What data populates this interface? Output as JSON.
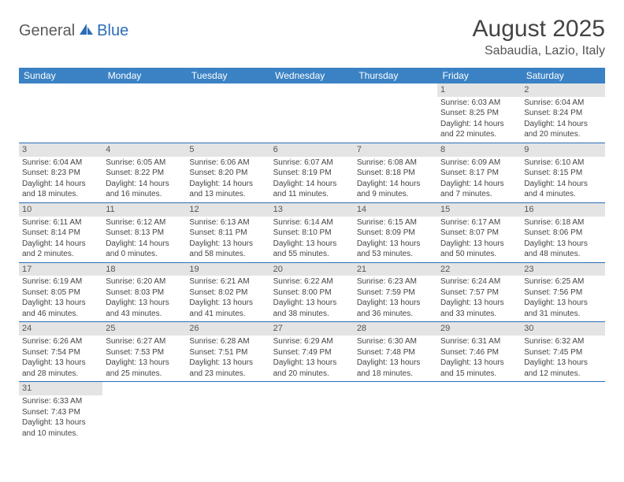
{
  "logo": {
    "general": "General",
    "blue": "Blue"
  },
  "title": "August 2025",
  "location": "Sabaudia, Lazio, Italy",
  "colors": {
    "header_bg": "#3b82c4",
    "header_text": "#ffffff",
    "border": "#2a6db8",
    "daynum_bg": "#e4e4e4",
    "text": "#444444"
  },
  "days_of_week": [
    "Sunday",
    "Monday",
    "Tuesday",
    "Wednesday",
    "Thursday",
    "Friday",
    "Saturday"
  ],
  "weeks": [
    [
      {},
      {},
      {},
      {},
      {},
      {
        "n": "1",
        "sr": "Sunrise: 6:03 AM",
        "ss": "Sunset: 8:25 PM",
        "dl1": "Daylight: 14 hours",
        "dl2": "and 22 minutes."
      },
      {
        "n": "2",
        "sr": "Sunrise: 6:04 AM",
        "ss": "Sunset: 8:24 PM",
        "dl1": "Daylight: 14 hours",
        "dl2": "and 20 minutes."
      }
    ],
    [
      {
        "n": "3",
        "sr": "Sunrise: 6:04 AM",
        "ss": "Sunset: 8:23 PM",
        "dl1": "Daylight: 14 hours",
        "dl2": "and 18 minutes."
      },
      {
        "n": "4",
        "sr": "Sunrise: 6:05 AM",
        "ss": "Sunset: 8:22 PM",
        "dl1": "Daylight: 14 hours",
        "dl2": "and 16 minutes."
      },
      {
        "n": "5",
        "sr": "Sunrise: 6:06 AM",
        "ss": "Sunset: 8:20 PM",
        "dl1": "Daylight: 14 hours",
        "dl2": "and 13 minutes."
      },
      {
        "n": "6",
        "sr": "Sunrise: 6:07 AM",
        "ss": "Sunset: 8:19 PM",
        "dl1": "Daylight: 14 hours",
        "dl2": "and 11 minutes."
      },
      {
        "n": "7",
        "sr": "Sunrise: 6:08 AM",
        "ss": "Sunset: 8:18 PM",
        "dl1": "Daylight: 14 hours",
        "dl2": "and 9 minutes."
      },
      {
        "n": "8",
        "sr": "Sunrise: 6:09 AM",
        "ss": "Sunset: 8:17 PM",
        "dl1": "Daylight: 14 hours",
        "dl2": "and 7 minutes."
      },
      {
        "n": "9",
        "sr": "Sunrise: 6:10 AM",
        "ss": "Sunset: 8:15 PM",
        "dl1": "Daylight: 14 hours",
        "dl2": "and 4 minutes."
      }
    ],
    [
      {
        "n": "10",
        "sr": "Sunrise: 6:11 AM",
        "ss": "Sunset: 8:14 PM",
        "dl1": "Daylight: 14 hours",
        "dl2": "and 2 minutes."
      },
      {
        "n": "11",
        "sr": "Sunrise: 6:12 AM",
        "ss": "Sunset: 8:13 PM",
        "dl1": "Daylight: 14 hours",
        "dl2": "and 0 minutes."
      },
      {
        "n": "12",
        "sr": "Sunrise: 6:13 AM",
        "ss": "Sunset: 8:11 PM",
        "dl1": "Daylight: 13 hours",
        "dl2": "and 58 minutes."
      },
      {
        "n": "13",
        "sr": "Sunrise: 6:14 AM",
        "ss": "Sunset: 8:10 PM",
        "dl1": "Daylight: 13 hours",
        "dl2": "and 55 minutes."
      },
      {
        "n": "14",
        "sr": "Sunrise: 6:15 AM",
        "ss": "Sunset: 8:09 PM",
        "dl1": "Daylight: 13 hours",
        "dl2": "and 53 minutes."
      },
      {
        "n": "15",
        "sr": "Sunrise: 6:17 AM",
        "ss": "Sunset: 8:07 PM",
        "dl1": "Daylight: 13 hours",
        "dl2": "and 50 minutes."
      },
      {
        "n": "16",
        "sr": "Sunrise: 6:18 AM",
        "ss": "Sunset: 8:06 PM",
        "dl1": "Daylight: 13 hours",
        "dl2": "and 48 minutes."
      }
    ],
    [
      {
        "n": "17",
        "sr": "Sunrise: 6:19 AM",
        "ss": "Sunset: 8:05 PM",
        "dl1": "Daylight: 13 hours",
        "dl2": "and 46 minutes."
      },
      {
        "n": "18",
        "sr": "Sunrise: 6:20 AM",
        "ss": "Sunset: 8:03 PM",
        "dl1": "Daylight: 13 hours",
        "dl2": "and 43 minutes."
      },
      {
        "n": "19",
        "sr": "Sunrise: 6:21 AM",
        "ss": "Sunset: 8:02 PM",
        "dl1": "Daylight: 13 hours",
        "dl2": "and 41 minutes."
      },
      {
        "n": "20",
        "sr": "Sunrise: 6:22 AM",
        "ss": "Sunset: 8:00 PM",
        "dl1": "Daylight: 13 hours",
        "dl2": "and 38 minutes."
      },
      {
        "n": "21",
        "sr": "Sunrise: 6:23 AM",
        "ss": "Sunset: 7:59 PM",
        "dl1": "Daylight: 13 hours",
        "dl2": "and 36 minutes."
      },
      {
        "n": "22",
        "sr": "Sunrise: 6:24 AM",
        "ss": "Sunset: 7:57 PM",
        "dl1": "Daylight: 13 hours",
        "dl2": "and 33 minutes."
      },
      {
        "n": "23",
        "sr": "Sunrise: 6:25 AM",
        "ss": "Sunset: 7:56 PM",
        "dl1": "Daylight: 13 hours",
        "dl2": "and 31 minutes."
      }
    ],
    [
      {
        "n": "24",
        "sr": "Sunrise: 6:26 AM",
        "ss": "Sunset: 7:54 PM",
        "dl1": "Daylight: 13 hours",
        "dl2": "and 28 minutes."
      },
      {
        "n": "25",
        "sr": "Sunrise: 6:27 AM",
        "ss": "Sunset: 7:53 PM",
        "dl1": "Daylight: 13 hours",
        "dl2": "and 25 minutes."
      },
      {
        "n": "26",
        "sr": "Sunrise: 6:28 AM",
        "ss": "Sunset: 7:51 PM",
        "dl1": "Daylight: 13 hours",
        "dl2": "and 23 minutes."
      },
      {
        "n": "27",
        "sr": "Sunrise: 6:29 AM",
        "ss": "Sunset: 7:49 PM",
        "dl1": "Daylight: 13 hours",
        "dl2": "and 20 minutes."
      },
      {
        "n": "28",
        "sr": "Sunrise: 6:30 AM",
        "ss": "Sunset: 7:48 PM",
        "dl1": "Daylight: 13 hours",
        "dl2": "and 18 minutes."
      },
      {
        "n": "29",
        "sr": "Sunrise: 6:31 AM",
        "ss": "Sunset: 7:46 PM",
        "dl1": "Daylight: 13 hours",
        "dl2": "and 15 minutes."
      },
      {
        "n": "30",
        "sr": "Sunrise: 6:32 AM",
        "ss": "Sunset: 7:45 PM",
        "dl1": "Daylight: 13 hours",
        "dl2": "and 12 minutes."
      }
    ],
    [
      {
        "n": "31",
        "sr": "Sunrise: 6:33 AM",
        "ss": "Sunset: 7:43 PM",
        "dl1": "Daylight: 13 hours",
        "dl2": "and 10 minutes."
      },
      {},
      {},
      {},
      {},
      {},
      {}
    ]
  ]
}
